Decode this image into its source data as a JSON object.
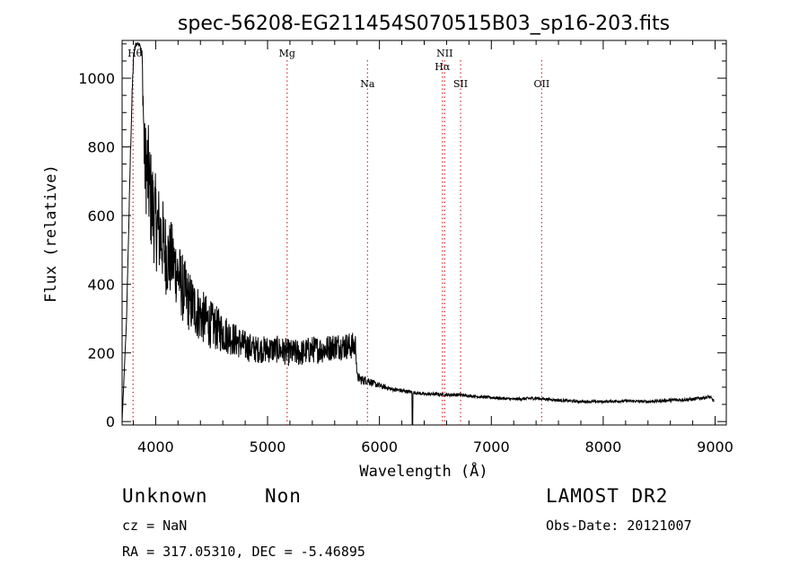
{
  "chart_data": {
    "type": "line",
    "title": "spec-56208-EG211454S070515B03_sp16-203.fits",
    "xlabel": "Wavelength (Å)",
    "ylabel": "Flux (relative)",
    "xlim": [
      3700,
      9100
    ],
    "ylim": [
      -10,
      1110
    ],
    "x_ticks": [
      4000,
      5000,
      6000,
      7000,
      8000,
      9000
    ],
    "x_tick_labels": [
      "4000",
      "5000",
      "6000",
      "7000",
      "8000",
      "9000"
    ],
    "y_ticks": [
      0,
      200,
      400,
      600,
      800,
      1000
    ],
    "y_tick_labels": [
      "0",
      "200",
      "400",
      "600",
      "800",
      "1000"
    ],
    "grid": false,
    "series": [
      {
        "color": "#000000",
        "x": [
          3700,
          3740,
          3780,
          3800,
          3820,
          3840,
          3860,
          3880,
          3900,
          3930,
          3960,
          4000,
          4050,
          4100,
          4150,
          4200,
          4250,
          4300,
          4350,
          4400,
          4500,
          4600,
          4700,
          4800,
          4900,
          5000,
          5100,
          5200,
          5300,
          5400,
          5500,
          5600,
          5700,
          5790,
          5800,
          5850,
          5900,
          5950,
          6000,
          6100,
          6200,
          6300,
          6400,
          6500,
          6600,
          6700,
          6800,
          6900,
          7000,
          7200,
          7400,
          7600,
          7800,
          8000,
          8200,
          8400,
          8600,
          8800,
          8950,
          8990
        ],
        "y": [
          0,
          300,
          850,
          1050,
          1100,
          1100,
          1100,
          1050,
          760,
          720,
          640,
          580,
          540,
          480,
          470,
          430,
          380,
          350,
          330,
          310,
          280,
          260,
          240,
          220,
          210,
          210,
          210,
          200,
          200,
          210,
          210,
          220,
          220,
          220,
          130,
          120,
          120,
          110,
          105,
          95,
          90,
          85,
          80,
          80,
          78,
          78,
          75,
          72,
          70,
          65,
          68,
          62,
          58,
          58,
          60,
          58,
          62,
          65,
          72,
          60
        ],
        "noise_amplitude": [
          0,
          0,
          20,
          20,
          10,
          5,
          5,
          40,
          120,
          160,
          150,
          140,
          130,
          120,
          110,
          100,
          100,
          90,
          85,
          80,
          70,
          60,
          50,
          45,
          40,
          40,
          40,
          40,
          40,
          40,
          40,
          40,
          40,
          40,
          15,
          15,
          12,
          10,
          8,
          6,
          6,
          5,
          5,
          5,
          5,
          5,
          4,
          4,
          4,
          4,
          5,
          4,
          4,
          4,
          4,
          4,
          5,
          5,
          5,
          5
        ]
      }
    ],
    "line_markers": [
      {
        "label": "Hθ",
        "x": 3798,
        "label_row": "top"
      },
      {
        "label": "Mg",
        "x": 5175,
        "label_row": "top"
      },
      {
        "label": "Na",
        "x": 5893,
        "label_row": "middle"
      },
      {
        "label": "NII",
        "x": 6583,
        "label_row": "top"
      },
      {
        "label": "Hα",
        "x": 6563,
        "label_row": "second"
      },
      {
        "label": "SII",
        "x": 6725,
        "label_row": "middle"
      },
      {
        "label": "OII",
        "x": 7450,
        "label_row": "middle"
      }
    ],
    "marker_color": "#d03030"
  },
  "info": {
    "class_label": "Unknown",
    "subclass_label": "Non",
    "survey_label": "LAMOST DR2",
    "cz_text": "cz = NaN",
    "obs_date_text": "Obs-Date: 20121007",
    "coords_text": "RA = 317.05310, DEC =  -5.46895"
  }
}
